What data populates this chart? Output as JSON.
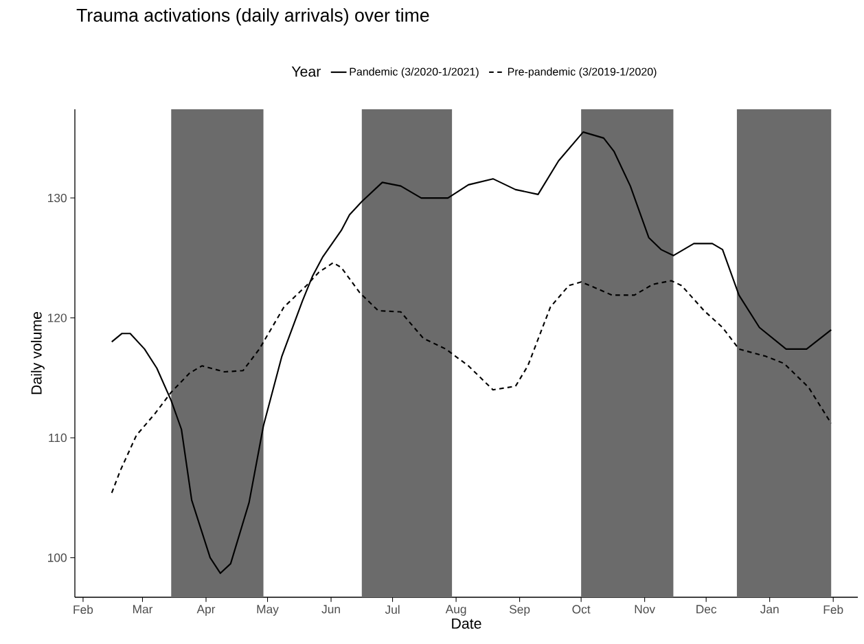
{
  "chart_data": {
    "type": "line",
    "title": "Trauma activations (daily arrivals) over time",
    "xlabel": "Date",
    "ylabel": "Daily volume",
    "legend_title": "Year",
    "legend": "top",
    "xlim": [
      "2020-01-28",
      "2021-02-13"
    ],
    "ylim": [
      96.7,
      137.4
    ],
    "xticks": [
      {
        "value": "2020-02-01",
        "label": "Feb"
      },
      {
        "value": "2020-03-01",
        "label": "Mar"
      },
      {
        "value": "2020-04-01",
        "label": "Apr"
      },
      {
        "value": "2020-05-01",
        "label": "May"
      },
      {
        "value": "2020-06-01",
        "label": "Jun"
      },
      {
        "value": "2020-07-01",
        "label": "Jul"
      },
      {
        "value": "2020-08-01",
        "label": "Aug"
      },
      {
        "value": "2020-09-01",
        "label": "Sep"
      },
      {
        "value": "2020-10-01",
        "label": "Oct"
      },
      {
        "value": "2020-11-01",
        "label": "Nov"
      },
      {
        "value": "2020-12-01",
        "label": "Dec"
      },
      {
        "value": "2021-01-01",
        "label": "Jan"
      },
      {
        "value": "2021-02-01",
        "label": "Feb"
      }
    ],
    "yticks": [
      100,
      110,
      120,
      130
    ],
    "bands": [
      {
        "axis": "x",
        "from": "2020-03-15",
        "to": "2020-04-29",
        "color": "#6b6b6b"
      },
      {
        "axis": "x",
        "from": "2020-06-16",
        "to": "2020-07-30",
        "color": "#6b6b6b"
      },
      {
        "axis": "x",
        "from": "2020-10-01",
        "to": "2020-11-15",
        "color": "#6b6b6b"
      },
      {
        "axis": "x",
        "from": "2020-12-16",
        "to": "2021-01-31",
        "color": "#6b6b6b"
      }
    ],
    "series": [
      {
        "name": "Pandemic (3/2020-1/2021)",
        "color": "#000000",
        "line_style": "solid",
        "x": [
          "2020-02-15",
          "2020-02-20",
          "2020-02-24",
          "2020-03-02",
          "2020-03-08",
          "2020-03-15",
          "2020-03-20",
          "2020-03-25",
          "2020-04-03",
          "2020-04-08",
          "2020-04-13",
          "2020-04-22",
          "2020-04-29",
          "2020-05-08",
          "2020-05-18",
          "2020-05-23",
          "2020-05-28",
          "2020-06-06",
          "2020-06-10",
          "2020-06-16",
          "2020-06-26",
          "2020-07-05",
          "2020-07-15",
          "2020-07-28",
          "2020-08-07",
          "2020-08-19",
          "2020-08-30",
          "2020-09-10",
          "2020-09-20",
          "2020-10-02",
          "2020-10-04",
          "2020-10-12",
          "2020-10-17",
          "2020-10-25",
          "2020-11-03",
          "2020-11-09",
          "2020-11-15",
          "2020-11-25",
          "2020-12-04",
          "2020-12-09",
          "2020-12-17",
          "2020-12-27",
          "2021-01-09",
          "2021-01-19",
          "2021-01-31"
        ],
        "values": [
          118.0,
          118.7,
          118.7,
          117.4,
          115.8,
          113.1,
          110.7,
          104.8,
          100.0,
          98.7,
          99.5,
          104.6,
          111.0,
          116.8,
          121.4,
          123.5,
          125.1,
          127.3,
          128.6,
          129.7,
          131.3,
          131.0,
          130.0,
          130.0,
          131.1,
          131.6,
          130.7,
          130.3,
          133.1,
          135.5,
          135.4,
          135.0,
          133.9,
          131.0,
          126.7,
          125.7,
          125.2,
          126.2,
          126.2,
          125.7,
          121.9,
          119.2,
          117.4,
          117.4,
          119.0
        ]
      },
      {
        "name": "Pre-pandemic (3/2019-1/2020)",
        "color": "#000000",
        "line_style": "dashed",
        "x": [
          "2020-02-15",
          "2020-02-19",
          "2020-02-27",
          "2020-03-07",
          "2020-03-15",
          "2020-03-24",
          "2020-03-30",
          "2020-04-10",
          "2020-04-19",
          "2020-04-27",
          "2020-05-09",
          "2020-05-20",
          "2020-05-26",
          "2020-06-02",
          "2020-06-06",
          "2020-06-15",
          "2020-06-24",
          "2020-07-05",
          "2020-07-16",
          "2020-07-27",
          "2020-08-07",
          "2020-08-19",
          "2020-08-30",
          "2020-09-05",
          "2020-09-16",
          "2020-09-25",
          "2020-10-01",
          "2020-10-08",
          "2020-10-16",
          "2020-10-27",
          "2020-11-05",
          "2020-11-14",
          "2020-11-19",
          "2020-11-30",
          "2020-12-09",
          "2020-12-17",
          "2020-12-30",
          "2021-01-08",
          "2021-01-20",
          "2021-01-31"
        ],
        "values": [
          105.4,
          107.2,
          110.2,
          112.0,
          113.8,
          115.4,
          116.0,
          115.5,
          115.6,
          117.4,
          120.9,
          122.7,
          123.8,
          124.6,
          124.2,
          122.1,
          120.6,
          120.5,
          118.3,
          117.4,
          116.0,
          114.0,
          114.3,
          116.0,
          120.9,
          122.7,
          123.0,
          122.5,
          121.9,
          121.9,
          122.8,
          123.1,
          122.7,
          120.6,
          119.2,
          117.4,
          116.8,
          116.2,
          114.2,
          111.2
        ]
      }
    ]
  }
}
